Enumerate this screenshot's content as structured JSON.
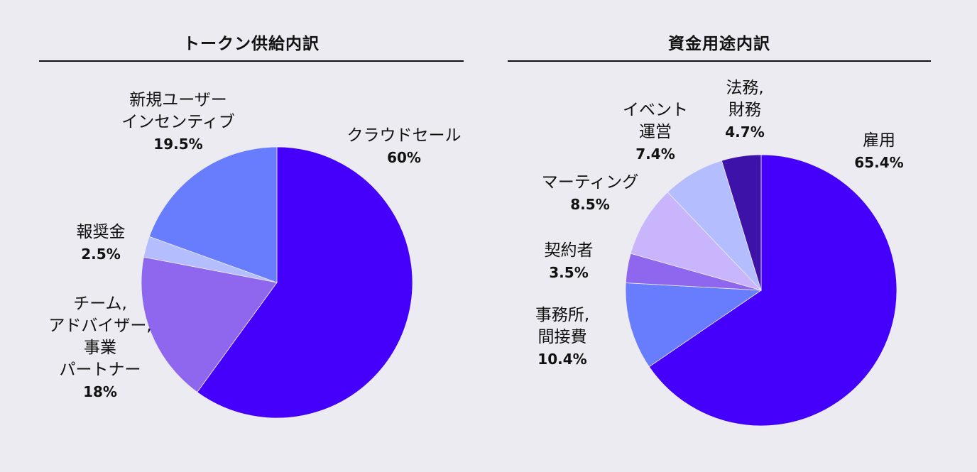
{
  "chart_data": [
    {
      "type": "pie",
      "title": "トークン供給内訳",
      "slices": [
        {
          "label": "クラウドセール",
          "value": 60,
          "value_label": "60%",
          "color": "#4500fb"
        },
        {
          "label": "チーム,\nアドバイザー,\n事業\nパートナー",
          "value": 18,
          "value_label": "18%",
          "color": "#8f66ee"
        },
        {
          "label": "報奨金",
          "value": 2.5,
          "value_label": "2.5%",
          "color": "#b4befe"
        },
        {
          "label": "新規ユーザー\nインセンティブ",
          "value": 19.5,
          "value_label": "19.5%",
          "color": "#677dfe"
        }
      ]
    },
    {
      "type": "pie",
      "title": "資金用途内訳",
      "slices": [
        {
          "label": "雇用",
          "value": 65.4,
          "value_label": "65.4%",
          "color": "#4500fb"
        },
        {
          "label": "事務所,\n間接費",
          "value": 10.4,
          "value_label": "10.4%",
          "color": "#677dfe"
        },
        {
          "label": "契約者",
          "value": 3.5,
          "value_label": "3.5%",
          "color": "#8f66ee"
        },
        {
          "label": "マーティング",
          "value": 8.5,
          "value_label": "8.5%",
          "color": "#c8b5fc"
        },
        {
          "label": "イベント\n運営",
          "value": 7.4,
          "value_label": "7.4%",
          "color": "#b4befe"
        },
        {
          "label": "法務,\n財務",
          "value": 4.7,
          "value_label": "4.7%",
          "color": "#3c12a8"
        }
      ]
    }
  ]
}
